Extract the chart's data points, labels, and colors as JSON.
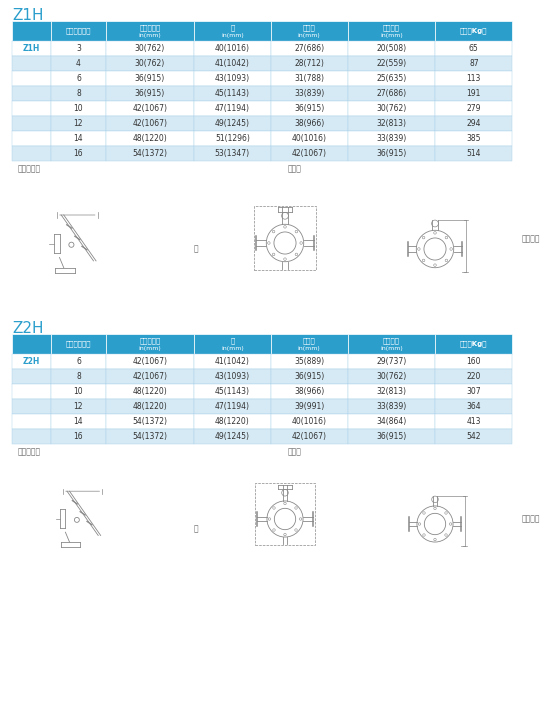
{
  "title1": "Z1H",
  "title2": "Z2H",
  "header_bg": "#2B9ECC",
  "header_fg": "#FFFFFF",
  "row_bg_light": "#D6EAF5",
  "row_bg_white": "#FFFFFF",
  "border_color": "#A8D0E8",
  "text_color": "#333333",
  "title_color": "#2B9ECC",
  "label_color": "#666666",
  "draw_color": "#888888",
  "headers": [
    "",
    "口径（英寸）",
    "法兰面距离\nin(mm)",
    "宽\nin(mm)",
    "整表高\nin(mm)",
    "传感器高\nin(mm)",
    "重量（Kg）"
  ],
  "z1h_rows": [
    [
      "Z1H",
      "3",
      "30(762)",
      "40(1016)",
      "27(686)",
      "20(508)",
      "65"
    ],
    [
      "",
      "4",
      "30(762)",
      "41(1042)",
      "28(712)",
      "22(559)",
      "87"
    ],
    [
      "",
      "6",
      "36(915)",
      "43(1093)",
      "31(788)",
      "25(635)",
      "113"
    ],
    [
      "",
      "8",
      "36(915)",
      "45(1143)",
      "33(839)",
      "27(686)",
      "191"
    ],
    [
      "",
      "10",
      "42(1067)",
      "47(1194)",
      "36(915)",
      "30(762)",
      "279"
    ],
    [
      "",
      "12",
      "42(1067)",
      "49(1245)",
      "38(966)",
      "32(813)",
      "294"
    ],
    [
      "",
      "14",
      "48(1220)",
      "51(1296)",
      "40(1016)",
      "33(839)",
      "385"
    ],
    [
      "",
      "16",
      "54(1372)",
      "53(1347)",
      "42(1067)",
      "36(915)",
      "514"
    ]
  ],
  "z2h_rows": [
    [
      "Z2H",
      "6",
      "42(1067)",
      "41(1042)",
      "35(889)",
      "29(737)",
      "160"
    ],
    [
      "",
      "8",
      "42(1067)",
      "43(1093)",
      "36(915)",
      "30(762)",
      "220"
    ],
    [
      "",
      "10",
      "48(1220)",
      "45(1143)",
      "38(966)",
      "32(813)",
      "307"
    ],
    [
      "",
      "12",
      "48(1220)",
      "47(1194)",
      "39(991)",
      "33(839)",
      "364"
    ],
    [
      "",
      "14",
      "54(1372)",
      "48(1220)",
      "40(1016)",
      "34(864)",
      "413"
    ],
    [
      "",
      "16",
      "54(1372)",
      "49(1245)",
      "42(1067)",
      "36(915)",
      "542"
    ]
  ],
  "col_weights": [
    0.072,
    0.103,
    0.163,
    0.143,
    0.143,
    0.163,
    0.143
  ]
}
